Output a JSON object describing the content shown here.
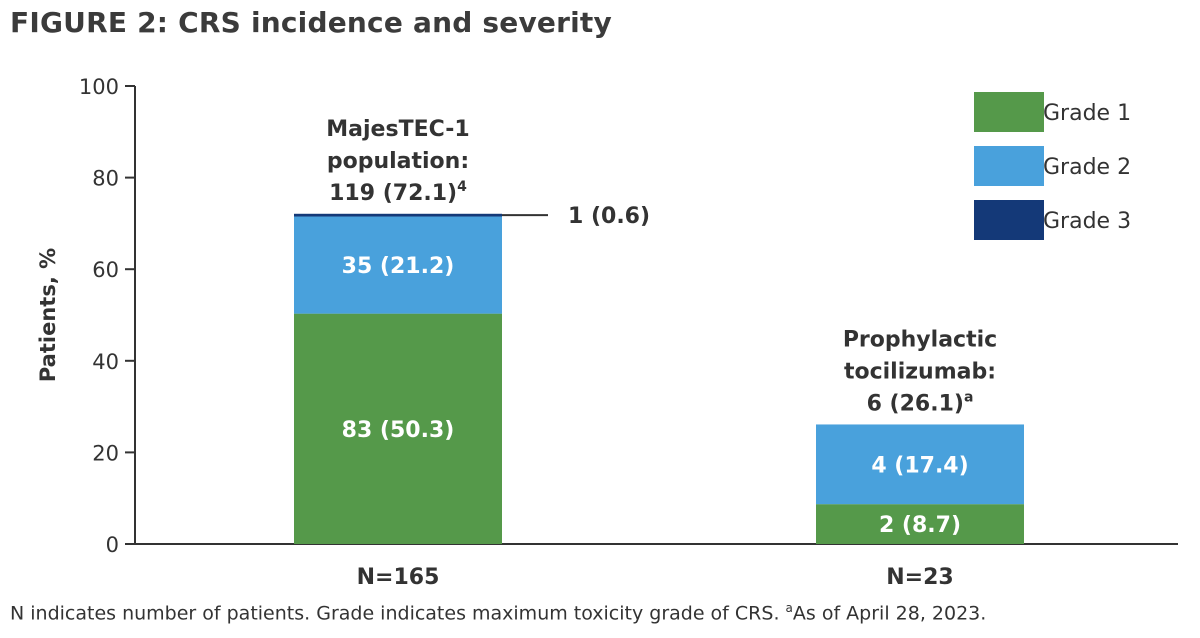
{
  "figure_title": "FIGURE 2: CRS incidence and severity",
  "footnote": {
    "main": "N indicates number of patients. Grade indicates maximum toxicity grade of CRS. ",
    "sup": "a",
    "tail": "As of April 28, 2023."
  },
  "chart_data": {
    "type": "bar",
    "stacked": true,
    "title": "",
    "xlabel": "",
    "ylabel": "Patients, %",
    "ylim": [
      0,
      100
    ],
    "yticks": [
      0,
      20,
      40,
      60,
      80,
      100
    ],
    "grid": false,
    "legend_position": "top-right",
    "categories": [
      "N=165",
      "N=23"
    ],
    "series": [
      {
        "name": "Grade 1",
        "color": "#55994a",
        "values": [
          50.3,
          8.7
        ],
        "labels": [
          "83 (50.3)",
          "2 (8.7)"
        ]
      },
      {
        "name": "Grade 2",
        "color": "#49a1dc",
        "values": [
          21.2,
          17.4
        ],
        "labels": [
          "35 (21.2)",
          "4 (17.4)"
        ]
      },
      {
        "name": "Grade 3",
        "color": "#143978",
        "values": [
          0.6,
          0
        ],
        "labels": [
          "1 (0.6)",
          ""
        ]
      }
    ],
    "bar_annotations": [
      {
        "lines": [
          "MajesTEC-1",
          "population:",
          "119 (72.1)"
        ],
        "sup": "4"
      },
      {
        "lines": [
          "Prophylactic",
          "tocilizumab:",
          "6 (26.1)"
        ],
        "sup": "a"
      }
    ]
  }
}
